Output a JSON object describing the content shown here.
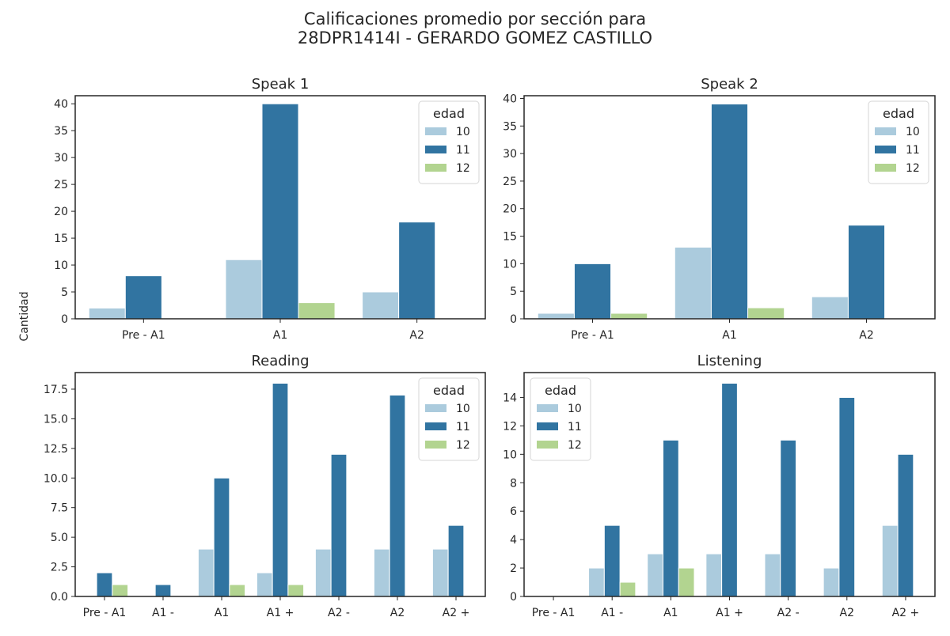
{
  "figure_title_line1": "Calificaciones promedio por sección para",
  "figure_title_line2": "28DPR1414I - GERARDO GOMEZ CASTILLO",
  "shared_ylabel": "Cantidad",
  "colors": {
    "10": "#abcbdd",
    "11": "#3174a1",
    "12": "#b2d490"
  },
  "chart_data": [
    {
      "type": "bar",
      "title": "Speak 1",
      "categories": [
        "Pre - A1",
        "A1",
        "A2"
      ],
      "series": [
        {
          "name": "10",
          "values": [
            2,
            11,
            5
          ]
        },
        {
          "name": "11",
          "values": [
            8,
            40,
            18
          ]
        },
        {
          "name": "12",
          "values": [
            0,
            3,
            0
          ]
        }
      ],
      "ylim": [
        0,
        41.5
      ],
      "yticks": [
        0,
        5,
        10,
        15,
        20,
        25,
        30,
        35,
        40
      ],
      "ytick_labels": [
        "0",
        "5",
        "10",
        "15",
        "20",
        "25",
        "30",
        "35",
        "40"
      ],
      "legend_title": "edad",
      "legend_loc": "upper right",
      "xlabel": "",
      "ylabel": "Cantidad"
    },
    {
      "type": "bar",
      "title": "Speak 2",
      "categories": [
        "Pre - A1",
        "A1",
        "A2"
      ],
      "series": [
        {
          "name": "10",
          "values": [
            1,
            13,
            4
          ]
        },
        {
          "name": "11",
          "values": [
            10,
            39,
            17
          ]
        },
        {
          "name": "12",
          "values": [
            1,
            2,
            0
          ]
        }
      ],
      "ylim": [
        0,
        40.5
      ],
      "yticks": [
        0,
        5,
        10,
        15,
        20,
        25,
        30,
        35,
        40
      ],
      "ytick_labels": [
        "0",
        "5",
        "10",
        "15",
        "20",
        "25",
        "30",
        "35",
        "40"
      ],
      "legend_title": "edad",
      "legend_loc": "upper right",
      "xlabel": "",
      "ylabel": ""
    },
    {
      "type": "bar",
      "title": "Reading",
      "categories": [
        "Pre - A1",
        "A1 -",
        "A1",
        "A1 +",
        "A2 -",
        "A2",
        "A2 +"
      ],
      "series": [
        {
          "name": "10",
          "values": [
            0,
            0,
            4,
            2,
            4,
            4,
            4
          ]
        },
        {
          "name": "11",
          "values": [
            2,
            1,
            10,
            18,
            12,
            17,
            6
          ]
        },
        {
          "name": "12",
          "values": [
            1,
            0,
            1,
            1,
            0,
            0,
            0
          ]
        }
      ],
      "ylim": [
        0,
        18.9
      ],
      "yticks": [
        0,
        2.5,
        5,
        7.5,
        10,
        12.5,
        15,
        17.5
      ],
      "ytick_labels": [
        "0.0",
        "2.5",
        "5.0",
        "7.5",
        "10.0",
        "12.5",
        "15.0",
        "17.5"
      ],
      "legend_title": "edad",
      "legend_loc": "upper right",
      "xlabel": "",
      "ylabel": ""
    },
    {
      "type": "bar",
      "title": "Listening",
      "categories": [
        "Pre - A1",
        "A1 -",
        "A1",
        "A1 +",
        "A2 -",
        "A2",
        "A2 +"
      ],
      "series": [
        {
          "name": "10",
          "values": [
            0,
            2,
            3,
            3,
            3,
            2,
            5
          ]
        },
        {
          "name": "11",
          "values": [
            0,
            5,
            11,
            15,
            11,
            14,
            10
          ]
        },
        {
          "name": "12",
          "values": [
            0,
            1,
            2,
            0,
            0,
            0,
            0
          ]
        }
      ],
      "ylim": [
        0,
        15.75
      ],
      "yticks": [
        0,
        2,
        4,
        6,
        8,
        10,
        12,
        14
      ],
      "ytick_labels": [
        "0",
        "2",
        "4",
        "6",
        "8",
        "10",
        "12",
        "14"
      ],
      "legend_title": "edad",
      "legend_loc": "upper left",
      "xlabel": "",
      "ylabel": ""
    }
  ]
}
